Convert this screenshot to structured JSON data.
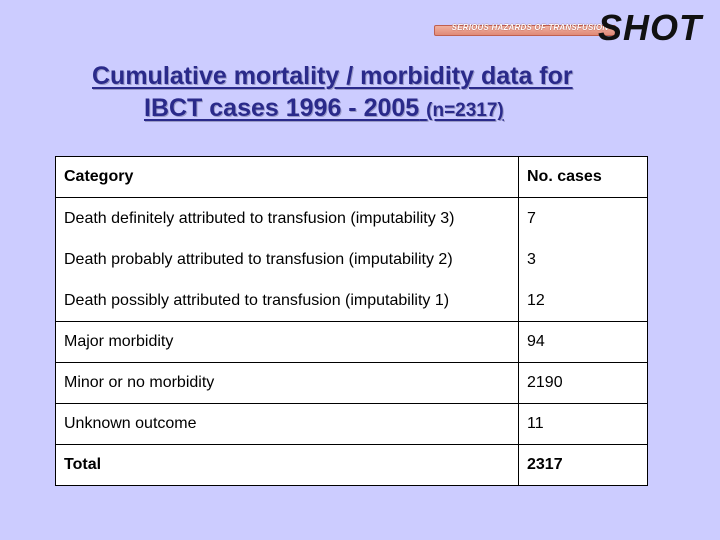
{
  "logo": {
    "tagline": "SERIOUS HAZARDS OF TRANSFUSION",
    "wordmark": "SHOT"
  },
  "title": {
    "line1": "Cumulative mortality / morbidity data for",
    "line2_main": "IBCT cases 1996 - 2005",
    "line2_suffix": "(n=2317)"
  },
  "table": {
    "headers": [
      "Category",
      "No. cases"
    ],
    "rows": [
      {
        "category": "Death definitely attributed to transfusion (imputability 3)",
        "cases": "7"
      },
      {
        "category": "Death probably attributed to transfusion (imputability 2)",
        "cases": "3"
      },
      {
        "category": "Death possibly attributed to transfusion (imputability 1)",
        "cases": "12"
      },
      {
        "category": "Major morbidity",
        "cases": "94"
      },
      {
        "category": "Minor or no morbidity",
        "cases": "2190"
      },
      {
        "category": "Unknown outcome",
        "cases": "11"
      }
    ],
    "total": {
      "category": "Total",
      "cases": "2317"
    }
  },
  "colors": {
    "background": "#ccccff",
    "title": "#2a2a8a"
  }
}
